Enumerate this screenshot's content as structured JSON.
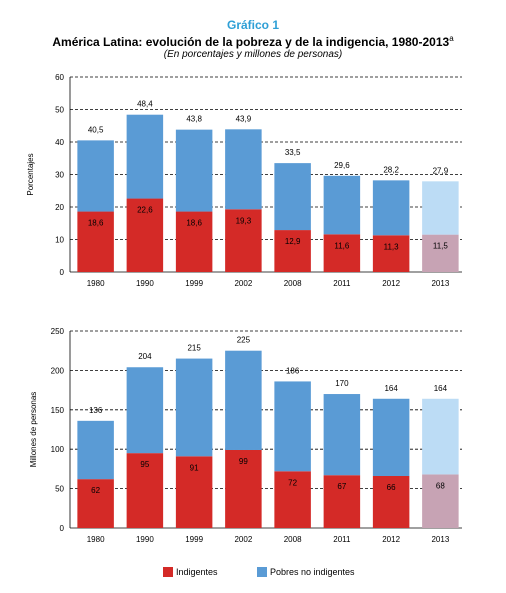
{
  "header": {
    "label": "Gráfico 1",
    "title": "América Latina: evolución de la pobreza y de la indigencia, 1980-2013",
    "title_note": "a",
    "subtitle": "(En porcentajes y millones de personas)"
  },
  "colors": {
    "indigentes": "#d42a27",
    "pobres_no_indigentes": "#5a9bd5",
    "indigentes_proj": "#c7a3b4",
    "pobres_no_indigentes_proj": "#bcdcf5",
    "gridline": "#000000"
  },
  "legend": {
    "indigentes": "Indigentes",
    "pobres_no_indigentes": "Pobres no indigentes"
  },
  "chart_data": [
    {
      "type": "bar",
      "stacked": true,
      "categories": [
        "1980",
        "1990",
        "1999",
        "2002",
        "2008",
        "2011",
        "2012",
        "2013"
      ],
      "ylabel": "Porcentajes",
      "ylim": [
        0,
        60
      ],
      "yticks": [
        0,
        10,
        20,
        30,
        40,
        50,
        60
      ],
      "grid": true,
      "series": [
        {
          "name": "Indigentes",
          "values": [
            18.6,
            22.6,
            18.6,
            19.3,
            12.9,
            11.6,
            11.3,
            11.5
          ]
        },
        {
          "name": "Pobres no indigentes",
          "values": [
            21.9,
            25.8,
            25.2,
            24.6,
            20.6,
            18.0,
            16.9,
            16.4
          ]
        }
      ],
      "inner_labels": [
        "18,6",
        "22,6",
        "18,6",
        "19,3",
        "12,9",
        "11,6",
        "11,3",
        "11,5"
      ],
      "total_labels": [
        "40,5",
        "48,4",
        "43,8",
        "43,9",
        "33,5",
        "29,6",
        "28,2",
        "27,9"
      ],
      "projected": [
        false,
        false,
        false,
        false,
        false,
        false,
        false,
        true
      ]
    },
    {
      "type": "bar",
      "stacked": true,
      "categories": [
        "1980",
        "1990",
        "1999",
        "2002",
        "2008",
        "2011",
        "2012",
        "2013"
      ],
      "ylabel": "Millones de personas",
      "ylim": [
        0,
        250
      ],
      "yticks": [
        0,
        50,
        100,
        150,
        200,
        250
      ],
      "grid": true,
      "series": [
        {
          "name": "Indigentes",
          "values": [
            62,
            95,
            91,
            99,
            72,
            67,
            66,
            68
          ]
        },
        {
          "name": "Pobres no indigentes",
          "values": [
            74,
            109,
            124,
            126,
            114,
            103,
            98,
            96
          ]
        }
      ],
      "inner_labels": [
        "62",
        "95",
        "91",
        "99",
        "72",
        "67",
        "66",
        "68"
      ],
      "total_labels": [
        "136",
        "204",
        "215",
        "225",
        "186",
        "170",
        "164",
        "164"
      ],
      "projected": [
        false,
        false,
        false,
        false,
        false,
        false,
        false,
        true
      ]
    }
  ]
}
